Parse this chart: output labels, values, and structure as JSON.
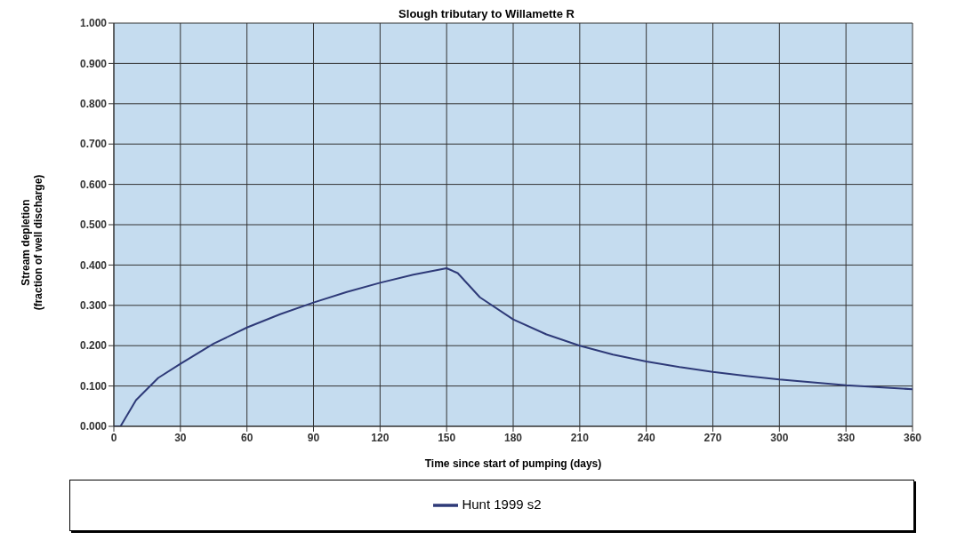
{
  "chart_data": {
    "type": "line",
    "title": "Slough tributary to Willamette R",
    "xlabel": "Time since start of pumping (days)",
    "ylabel": "Stream depletion\n(fraction of well discharge)",
    "series": [
      {
        "name": "Hunt 1999 s2",
        "color": "#2e3a78",
        "x": [
          0,
          3,
          10,
          20,
          30,
          45,
          60,
          75,
          90,
          105,
          120,
          135,
          150,
          155,
          165,
          180,
          195,
          210,
          225,
          240,
          255,
          270,
          285,
          300,
          315,
          330,
          345,
          360
        ],
        "values": [
          0,
          0,
          0.065,
          0.12,
          0.155,
          0.205,
          0.245,
          0.278,
          0.307,
          0.333,
          0.356,
          0.376,
          0.392,
          0.38,
          0.32,
          0.265,
          0.228,
          0.2,
          0.178,
          0.161,
          0.147,
          0.135,
          0.125,
          0.116,
          0.109,
          0.102,
          0.097,
          0.092
        ]
      }
    ],
    "xlim": [
      0,
      360
    ],
    "xticks": [
      0,
      30,
      60,
      90,
      120,
      150,
      180,
      210,
      240,
      270,
      300,
      330,
      360
    ],
    "ylim": [
      0,
      1
    ],
    "yticks": [
      {
        "value": 0,
        "label": "0.000"
      },
      {
        "value": 0.1,
        "label": "0.100"
      },
      {
        "value": 0.2,
        "label": "0.200"
      },
      {
        "value": 0.3,
        "label": "0.300"
      },
      {
        "value": 0.4,
        "label": "0.400"
      },
      {
        "value": 0.5,
        "label": "0.500"
      },
      {
        "value": 0.6,
        "label": "0.600"
      },
      {
        "value": 0.7,
        "label": "0.700"
      },
      {
        "value": 0.8,
        "label": "0.800"
      },
      {
        "value": 0.9,
        "label": "0.900"
      },
      {
        "value": 1,
        "label": "1.000"
      }
    ],
    "grid": true,
    "legend": "bottom",
    "marker": "none",
    "line_style": "solid"
  }
}
